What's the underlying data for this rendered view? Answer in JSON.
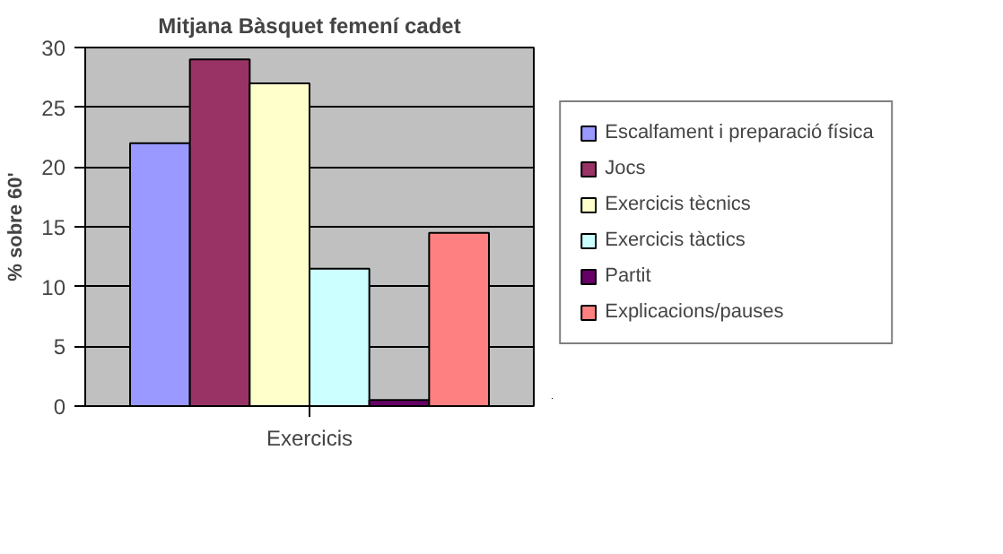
{
  "chart_data": {
    "type": "bar",
    "title": "Mitjana Bàsquet femení cadet",
    "ylabel": "% sobre 60'",
    "categories": [
      "Exercicis"
    ],
    "series": [
      {
        "name": "Escalfament i preparació física",
        "color": "#9999ff",
        "values": [
          22
        ]
      },
      {
        "name": "Jocs",
        "color": "#993366",
        "values": [
          29
        ]
      },
      {
        "name": "Exercicis tècnics",
        "color": "#ffffcc",
        "values": [
          27
        ]
      },
      {
        "name": "Exercicis tàctics",
        "color": "#ccffff",
        "values": [
          11.5
        ]
      },
      {
        "name": "Partit",
        "color": "#660066",
        "values": [
          0.5
        ]
      },
      {
        "name": "Explicacions/pauses",
        "color": "#ff8080",
        "values": [
          14.5
        ]
      }
    ],
    "ylim": [
      0,
      30
    ],
    "yticks": [
      0,
      5,
      10,
      15,
      20,
      25,
      30
    ],
    "grid": "y",
    "legend": "right"
  }
}
